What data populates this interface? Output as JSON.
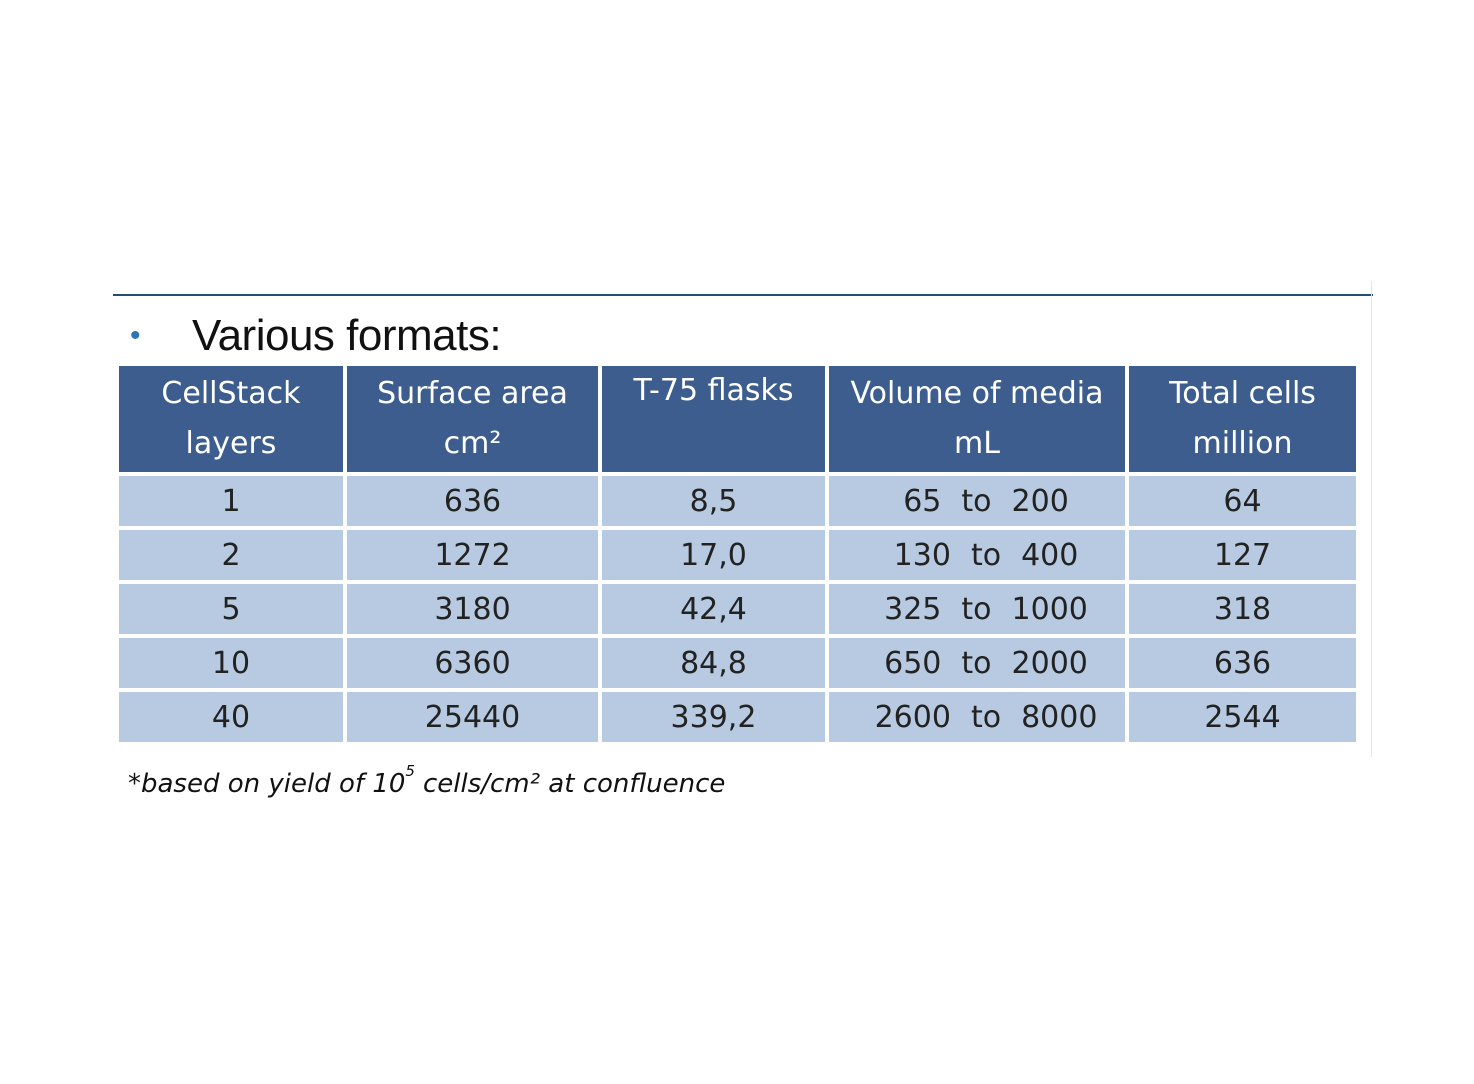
{
  "heading": {
    "bullet": "•",
    "text": "Various formats:"
  },
  "table": {
    "headers": [
      [
        "CellStack",
        "layers"
      ],
      [
        "Surface area",
        "cm²"
      ],
      [
        "T-75 flasks",
        ""
      ],
      [
        "Volume of media",
        "mL"
      ],
      [
        "Total cells",
        "million"
      ]
    ],
    "rows": [
      {
        "layers": "1",
        "area": "636",
        "flasks": "8,5",
        "vol_from": "65",
        "vol_to_word": "to",
        "vol_to": "200",
        "cells": "64"
      },
      {
        "layers": "2",
        "area": "1272",
        "flasks": "17,0",
        "vol_from": "130",
        "vol_to_word": "to",
        "vol_to": "400",
        "cells": "127"
      },
      {
        "layers": "5",
        "area": "3180",
        "flasks": "42,4",
        "vol_from": "325",
        "vol_to_word": "to",
        "vol_to": "1000",
        "cells": "318"
      },
      {
        "layers": "10",
        "area": "6360",
        "flasks": "84,8",
        "vol_from": "650",
        "vol_to_word": "to",
        "vol_to": "2000",
        "cells": "636"
      },
      {
        "layers": "40",
        "area": "25440",
        "flasks": "339,2",
        "vol_from": "2600",
        "vol_to_word": "to",
        "vol_to": "8000",
        "cells": "2544"
      }
    ]
  },
  "footnote": {
    "before": "*based on yield of 10",
    "exponent": "5",
    "after": "cells/cm² at confluence"
  },
  "colors": {
    "header_bg": "#3c5d8e",
    "row_bg": "#b8cae2",
    "rule": "#1f4e79",
    "bullet": "#2e74b5"
  }
}
